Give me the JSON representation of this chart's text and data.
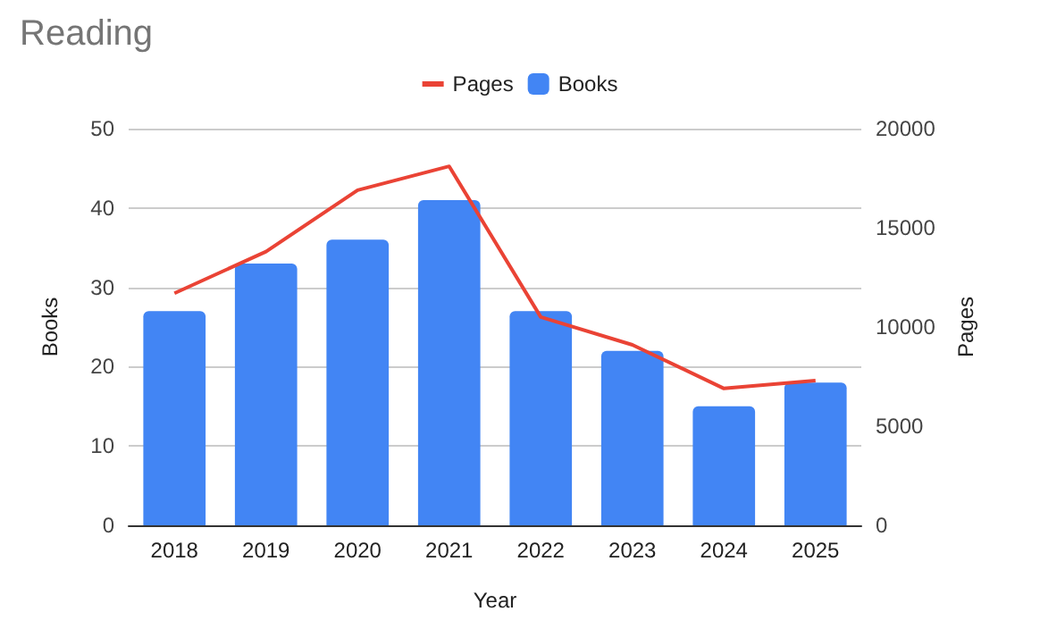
{
  "chart_data": {
    "type": "bar",
    "title": "Reading",
    "xlabel": "Year",
    "ylabel": "Books",
    "y2label": "Pages",
    "categories": [
      "2018",
      "2019",
      "2020",
      "2021",
      "2022",
      "2023",
      "2024",
      "2025"
    ],
    "series": [
      {
        "name": "Pages",
        "type": "line",
        "axis": "y2",
        "color": "#ea4335",
        "values": [
          11700,
          13800,
          16900,
          18100,
          10500,
          9100,
          6900,
          7300
        ]
      },
      {
        "name": "Books",
        "type": "bar",
        "color": "#4285f4",
        "values": [
          27,
          33,
          36,
          41,
          27,
          22,
          15,
          18
        ]
      }
    ],
    "ylim": [
      0,
      50
    ],
    "yticks": [
      0,
      10,
      20,
      30,
      40,
      50
    ],
    "y2lim": [
      0,
      20000
    ],
    "y2ticks": [
      0,
      5000,
      10000,
      15000,
      20000
    ],
    "grid": "y",
    "legend": "top",
    "marker": "none"
  }
}
